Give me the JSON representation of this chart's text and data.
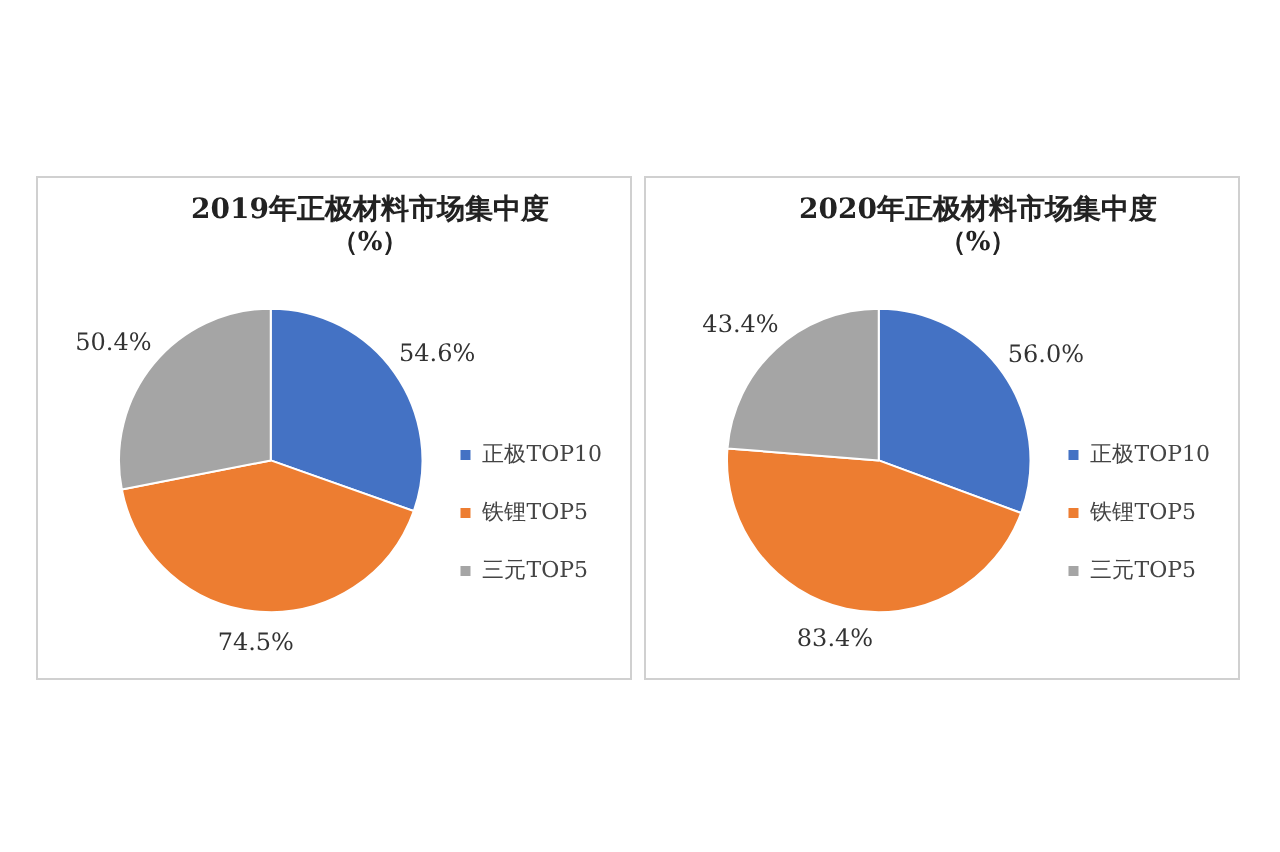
{
  "chart_data": [
    {
      "type": "pie",
      "title": "2019年正极材料市场集中度",
      "subtitle": "（%）",
      "categories": [
        "正极TOP10",
        "铁锂TOP5",
        "三元TOP5"
      ],
      "values": [
        54.6,
        74.5,
        50.4
      ],
      "value_labels": [
        "54.6%",
        "74.5%",
        "50.4%"
      ],
      "colors": [
        "#4472c4",
        "#ed7d31",
        "#a5a5a5"
      ],
      "legend": "right"
    },
    {
      "type": "pie",
      "title": "2020年正极材料市场集中度",
      "subtitle": "（%）",
      "categories": [
        "正极TOP10",
        "铁锂TOP5",
        "三元TOP5"
      ],
      "values": [
        56.0,
        83.4,
        43.4
      ],
      "value_labels": [
        "56.0%",
        "83.4%",
        "43.4%"
      ],
      "colors": [
        "#4472c4",
        "#ed7d31",
        "#a5a5a5"
      ],
      "legend": "right"
    }
  ]
}
